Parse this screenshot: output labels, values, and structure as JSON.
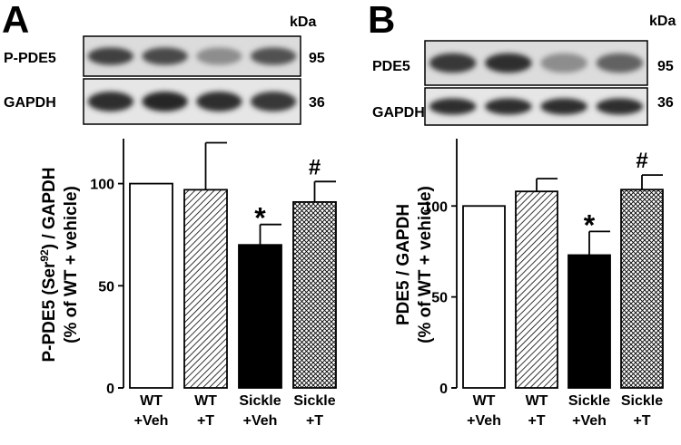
{
  "panels": [
    {
      "letter": "A",
      "kda_label": "kDa",
      "blots": [
        {
          "label": "P-PDE5",
          "kda": "95",
          "bands": [
            0.8,
            0.75,
            0.35,
            0.7
          ]
        },
        {
          "label": "GAPDH",
          "kda": "36",
          "bands": [
            0.9,
            0.95,
            0.9,
            0.85
          ]
        }
      ],
      "ylabel_parts": {
        "prefix": "P-PDE5 (Ser",
        "sup": "92",
        "suffix": ") / GAPDH"
      },
      "ylabel_line2": "(% of WT + vehicle)",
      "yticks": [
        "0",
        "50",
        "100"
      ],
      "categories": [
        [
          "WT",
          "+Veh"
        ],
        [
          "WT",
          "+T"
        ],
        [
          "Sickle",
          "+Veh"
        ],
        [
          "Sickle",
          "+T"
        ]
      ],
      "significance": [
        "",
        "",
        "*",
        "#"
      ]
    },
    {
      "letter": "B",
      "kda_label": "kDa",
      "blots": [
        {
          "label": "PDE5",
          "kda": "95",
          "bands": [
            0.85,
            0.9,
            0.35,
            0.6
          ]
        },
        {
          "label": "GAPDH",
          "kda": "36",
          "bands": [
            0.9,
            0.9,
            0.9,
            0.9
          ]
        }
      ],
      "ylabel_parts": {
        "prefix": "PDE5 / GAPDH",
        "sup": "",
        "suffix": ""
      },
      "ylabel_line2": "(% of WT + vehicle)",
      "yticks": [
        "0",
        "50",
        "100"
      ],
      "categories": [
        [
          "WT",
          "+Veh"
        ],
        [
          "WT",
          "+T"
        ],
        [
          "Sickle",
          "+Veh"
        ],
        [
          "Sickle",
          "+T"
        ]
      ],
      "significance": [
        "",
        "",
        "*",
        "#"
      ]
    }
  ],
  "chart_data": [
    {
      "type": "bar",
      "categories": [
        "WT +Veh",
        "WT +T",
        "Sickle +Veh",
        "Sickle +T"
      ],
      "values": [
        100,
        97,
        70,
        91
      ],
      "errors": [
        0,
        23,
        10,
        10
      ],
      "fills": [
        "white",
        "diagonal-hatch",
        "black",
        "crosshatch"
      ],
      "ylabel": "P-PDE5 (Ser92) / GAPDH (% of WT + vehicle)",
      "ylim": [
        0,
        122
      ],
      "yticks": [
        0,
        50,
        100
      ]
    },
    {
      "type": "bar",
      "categories": [
        "WT +Veh",
        "WT +T",
        "Sickle +Veh",
        "Sickle +T"
      ],
      "values": [
        100,
        108,
        73,
        109
      ],
      "errors": [
        0,
        7,
        13,
        8
      ],
      "fills": [
        "white",
        "diagonal-hatch",
        "black",
        "crosshatch"
      ],
      "ylabel": "PDE5 / GAPDH (% of WT + vehicle)",
      "ylim": [
        0,
        137
      ],
      "yticks": [
        0,
        50,
        100
      ]
    }
  ]
}
